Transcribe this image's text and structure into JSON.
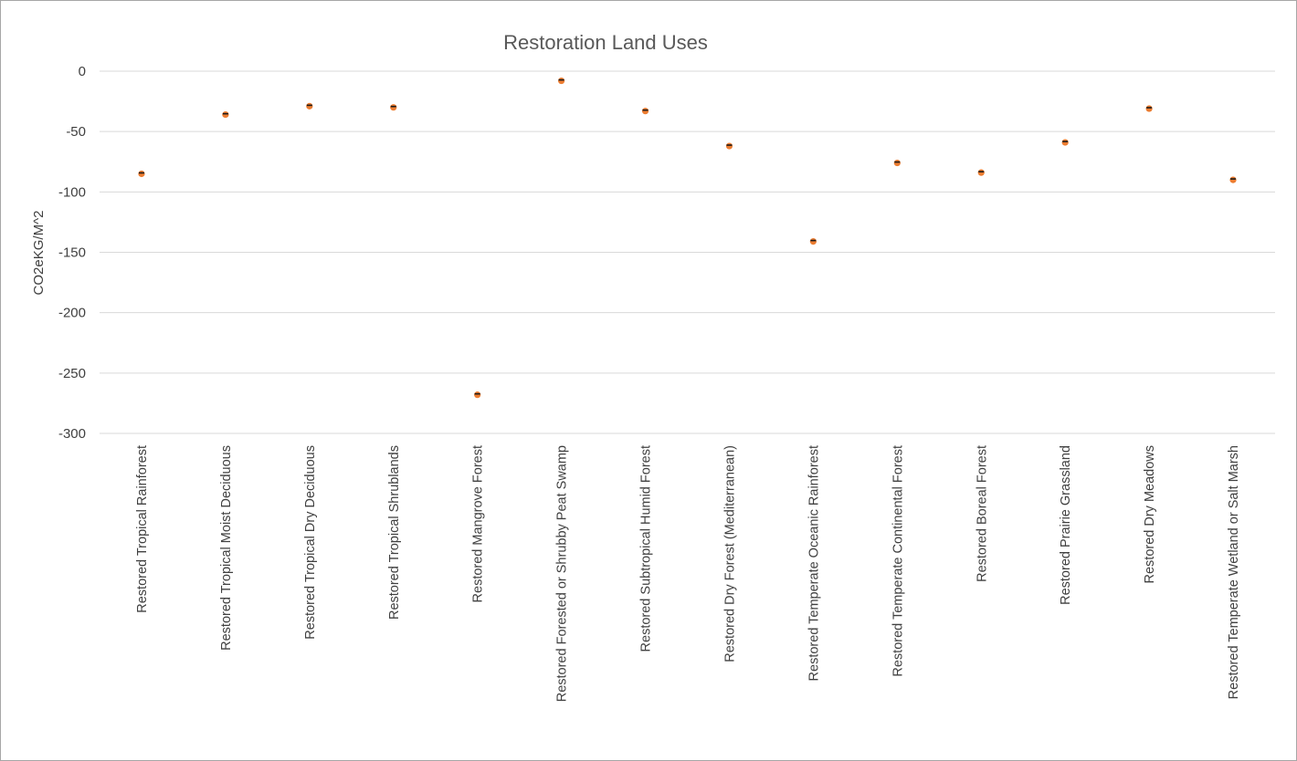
{
  "chart_data": {
    "type": "scatter",
    "title": "Restoration Land Uses",
    "xlabel": "",
    "ylabel": "CO2eKG/M^2",
    "ylim": [
      -300,
      0
    ],
    "yticks": [
      0,
      -50,
      -100,
      -150,
      -200,
      -250,
      -300
    ],
    "grid": true,
    "legend": "none",
    "marker_color": "#ed7d31",
    "marker_edge_color": "#1a1a1a",
    "categories": [
      "Restored Tropical Rainforest",
      "Restored Tropical Moist Deciduous",
      "Restored Tropical Dry Deciduous",
      "Restored Tropical Shrublands",
      "Restored Mangrove Forest",
      "Restored Forested or Shrubby Peat Swamp",
      "Restored Subtropical Humid Forest",
      "Restored Dry Forest (Mediterranean)",
      "Restored Temperate Oceanic Rainforest",
      "Restored Temperate Continental Forest",
      "Restored Boreal Forest",
      "Restored Prairie Grassland",
      "Restored Dry Meadows",
      "Restored Temperate Wetland or Salt Marsh"
    ],
    "values": [
      -85,
      -36,
      -29,
      -30,
      -268,
      -8,
      -33,
      -62,
      -141,
      -76,
      -84,
      -59,
      -31,
      -90
    ]
  }
}
